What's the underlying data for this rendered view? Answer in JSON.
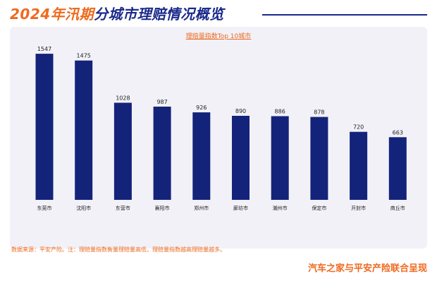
{
  "header": {
    "title_part1": "2024年汛期",
    "title_part2": "分城市理赔情况概览"
  },
  "chart_data": {
    "type": "bar",
    "title": "理赔量指数Top 10城市",
    "categories": [
      "东莞市",
      "沈阳市",
      "东营市",
      "襄阳市",
      "郑州市",
      "廊坊市",
      "潮州市",
      "保定市",
      "开封市",
      "商丘市"
    ],
    "values": [
      1547,
      1475,
      1028,
      987,
      926,
      890,
      886,
      878,
      720,
      663
    ],
    "ylim": [
      0,
      1600
    ],
    "bar_color": "#14237a",
    "grid": false,
    "legend": "none"
  },
  "footnote": "数据来源：平安产险。注：理赔量指数衡量理赔量高低，理赔量指数越高理赔量越多。",
  "brand": "汽车之家与平安产险联合呈现"
}
